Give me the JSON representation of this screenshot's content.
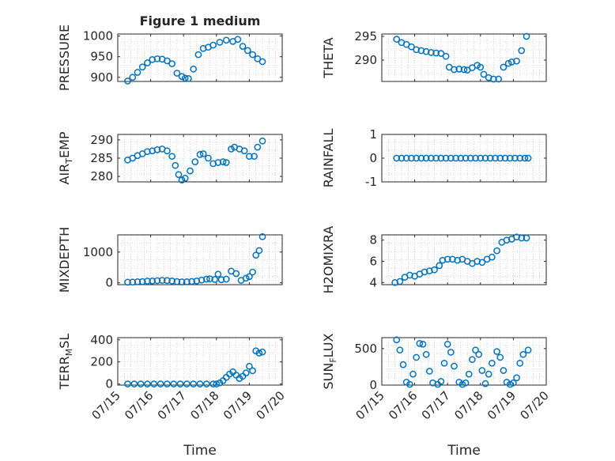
{
  "figure_title": "Figure 1 medium",
  "x_axis_label": "Time",
  "x_tick_labels": [
    "07/15",
    "07/16",
    "07/17",
    "07/18",
    "07/19",
    "07/20"
  ],
  "colors": {
    "marker": "#0072BD",
    "axis": "#262626",
    "grid": "#bfbfbf"
  },
  "chart_data": [
    {
      "type": "scatter",
      "ylabel": "PRESSURE",
      "title": "Figure 1 medium",
      "xlabel": "",
      "xlim": [
        0,
        5
      ],
      "ylim": [
        890,
        1005
      ],
      "yticks": [
        900,
        950,
        1000
      ],
      "x": [
        0.3,
        0.45,
        0.6,
        0.75,
        0.9,
        1.05,
        1.2,
        1.35,
        1.5,
        1.65,
        1.8,
        1.95,
        2.05,
        2.15,
        2.3,
        2.45,
        2.6,
        2.75,
        2.9,
        3.1,
        3.3,
        3.5,
        3.65,
        3.8,
        3.95,
        4.1,
        4.25,
        4.4
      ],
      "y": [
        891,
        900,
        912,
        925,
        935,
        943,
        945,
        944,
        940,
        933,
        910,
        902,
        898,
        897,
        920,
        955,
        970,
        973,
        978,
        985,
        990,
        987,
        992,
        975,
        965,
        955,
        945,
        938
      ]
    },
    {
      "type": "scatter",
      "ylabel": "THETA",
      "xlabel": "",
      "xlim": [
        0,
        5
      ],
      "ylim": [
        285.5,
        295.5
      ],
      "yticks": [
        290,
        295
      ],
      "x": [
        0.45,
        0.6,
        0.75,
        0.9,
        1.05,
        1.2,
        1.35,
        1.5,
        1.65,
        1.8,
        1.95,
        2.05,
        2.2,
        2.35,
        2.5,
        2.6,
        2.75,
        2.9,
        3.0,
        3.1,
        3.25,
        3.4,
        3.55,
        3.7,
        3.85,
        3.95,
        4.1,
        4.25,
        4.4
      ],
      "y": [
        294.4,
        293.7,
        293.3,
        292.8,
        292.2,
        292.0,
        291.8,
        291.6,
        291.5,
        291.4,
        290.8,
        288.5,
        288.0,
        288.1,
        288.0,
        287.9,
        288.4,
        288.9,
        288.5,
        287.0,
        286.3,
        286.0,
        286.0,
        288.5,
        289.3,
        289.6,
        289.8,
        292.0,
        295.0
      ]
    },
    {
      "type": "scatter",
      "ylabel": "AIR_TEMP",
      "xlabel": "",
      "xlim": [
        0,
        5
      ],
      "ylim": [
        278.5,
        291.5
      ],
      "yticks": [
        280,
        285,
        290
      ],
      "x": [
        0.3,
        0.45,
        0.6,
        0.75,
        0.9,
        1.05,
        1.2,
        1.35,
        1.5,
        1.65,
        1.75,
        1.85,
        1.95,
        2.05,
        2.2,
        2.35,
        2.5,
        2.6,
        2.75,
        2.9,
        3.05,
        3.2,
        3.3,
        3.45,
        3.55,
        3.7,
        3.85,
        4.0,
        4.15,
        4.25,
        4.4
      ],
      "y": [
        284.5,
        285.0,
        285.7,
        286.2,
        286.8,
        287.0,
        287.3,
        287.5,
        287.0,
        285.5,
        283.0,
        280.5,
        279.0,
        279.5,
        281.5,
        284.0,
        286.0,
        286.2,
        285.0,
        283.5,
        283.8,
        284.0,
        283.8,
        287.5,
        288.0,
        287.5,
        287.0,
        285.5,
        285.5,
        288.0,
        289.7
      ]
    },
    {
      "type": "scatter",
      "ylabel": "RAINFALL",
      "xlabel": "",
      "xlim": [
        0,
        5
      ],
      "ylim": [
        -1,
        1
      ],
      "yticks": [
        -1,
        0,
        1
      ],
      "x": [
        0.45,
        0.6,
        0.75,
        0.9,
        1.05,
        1.2,
        1.35,
        1.5,
        1.65,
        1.8,
        1.95,
        2.1,
        2.25,
        2.4,
        2.55,
        2.7,
        2.85,
        3.0,
        3.15,
        3.3,
        3.45,
        3.6,
        3.75,
        3.9,
        4.05,
        4.2,
        4.35,
        4.45
      ],
      "y": [
        0,
        0,
        0,
        0,
        0,
        0,
        0,
        0,
        0,
        0,
        0,
        0,
        0,
        0,
        0,
        0,
        0,
        0,
        0,
        0,
        0,
        0,
        0,
        0,
        0,
        0,
        0,
        0
      ]
    },
    {
      "type": "scatter",
      "ylabel": "MIXDEPTH",
      "xlabel": "",
      "xlim": [
        0,
        5
      ],
      "ylim": [
        -60,
        1560
      ],
      "yticks": [
        0,
        1000
      ],
      "x": [
        0.3,
        0.45,
        0.6,
        0.75,
        0.9,
        1.05,
        1.2,
        1.35,
        1.5,
        1.65,
        1.8,
        1.95,
        2.1,
        2.25,
        2.4,
        2.55,
        2.7,
        2.8,
        2.95,
        3.05,
        3.15,
        3.3,
        3.45,
        3.6,
        3.75,
        3.9,
        4.0,
        4.1,
        4.2,
        4.3,
        4.4
      ],
      "y": [
        20,
        25,
        35,
        40,
        55,
        60,
        70,
        80,
        75,
        60,
        40,
        30,
        35,
        45,
        60,
        90,
        120,
        130,
        110,
        280,
        100,
        120,
        380,
        300,
        80,
        150,
        200,
        350,
        900,
        1050,
        1500
      ]
    },
    {
      "type": "scatter",
      "ylabel": "H2OMIXRA",
      "xlabel": "",
      "xlim": [
        0,
        5
      ],
      "ylim": [
        3.8,
        8.5
      ],
      "yticks": [
        4,
        6,
        8
      ],
      "x": [
        0.4,
        0.55,
        0.7,
        0.85,
        1.0,
        1.15,
        1.3,
        1.45,
        1.6,
        1.75,
        1.85,
        2.0,
        2.15,
        2.3,
        2.45,
        2.6,
        2.75,
        2.9,
        3.05,
        3.2,
        3.35,
        3.5,
        3.65,
        3.8,
        3.95,
        4.1,
        4.25,
        4.4
      ],
      "y": [
        4.0,
        4.1,
        4.5,
        4.7,
        4.6,
        4.8,
        5.0,
        5.1,
        5.2,
        5.6,
        6.1,
        6.2,
        6.2,
        6.1,
        6.2,
        6.0,
        5.8,
        6.0,
        5.9,
        6.2,
        6.4,
        7.0,
        7.8,
        8.0,
        8.1,
        8.3,
        8.2,
        8.2
      ]
    },
    {
      "type": "scatter",
      "ylabel": "TERR_MSL",
      "xlabel": "",
      "xlim": [
        0,
        5
      ],
      "ylim": [
        -10,
        420
      ],
      "yticks": [
        0,
        200,
        400
      ],
      "x": [
        0.3,
        0.5,
        0.7,
        0.9,
        1.1,
        1.3,
        1.5,
        1.7,
        1.9,
        2.1,
        2.3,
        2.5,
        2.7,
        2.9,
        3.0,
        3.1,
        3.2,
        3.3,
        3.4,
        3.5,
        3.6,
        3.7,
        3.8,
        3.9,
        4.0,
        4.1,
        4.2,
        4.3,
        4.4
      ],
      "y": [
        0,
        0,
        0,
        0,
        0,
        0,
        0,
        0,
        0,
        0,
        0,
        0,
        0,
        0,
        0,
        10,
        30,
        60,
        90,
        110,
        80,
        50,
        70,
        100,
        160,
        120,
        300,
        280,
        290
      ]
    },
    {
      "type": "scatter",
      "ylabel": "SUN_FLUX",
      "xlabel": "",
      "xlim": [
        0,
        5
      ],
      "ylim": [
        0,
        650
      ],
      "yticks": [
        0,
        500
      ],
      "x": [
        0.45,
        0.55,
        0.65,
        0.75,
        0.85,
        0.95,
        1.05,
        1.15,
        1.25,
        1.35,
        1.45,
        1.55,
        1.7,
        1.8,
        1.9,
        2.0,
        2.1,
        2.2,
        2.35,
        2.45,
        2.55,
        2.65,
        2.75,
        2.85,
        2.95,
        3.05,
        3.15,
        3.25,
        3.35,
        3.5,
        3.6,
        3.7,
        3.8,
        3.9,
        4.0,
        4.1,
        4.2,
        4.3,
        4.45
      ],
      "y": [
        620,
        480,
        280,
        40,
        10,
        150,
        380,
        570,
        560,
        420,
        190,
        30,
        10,
        50,
        300,
        560,
        450,
        260,
        40,
        10,
        30,
        150,
        350,
        480,
        420,
        200,
        20,
        150,
        300,
        460,
        380,
        200,
        40,
        10,
        30,
        100,
        300,
        420,
        480
      ]
    }
  ]
}
